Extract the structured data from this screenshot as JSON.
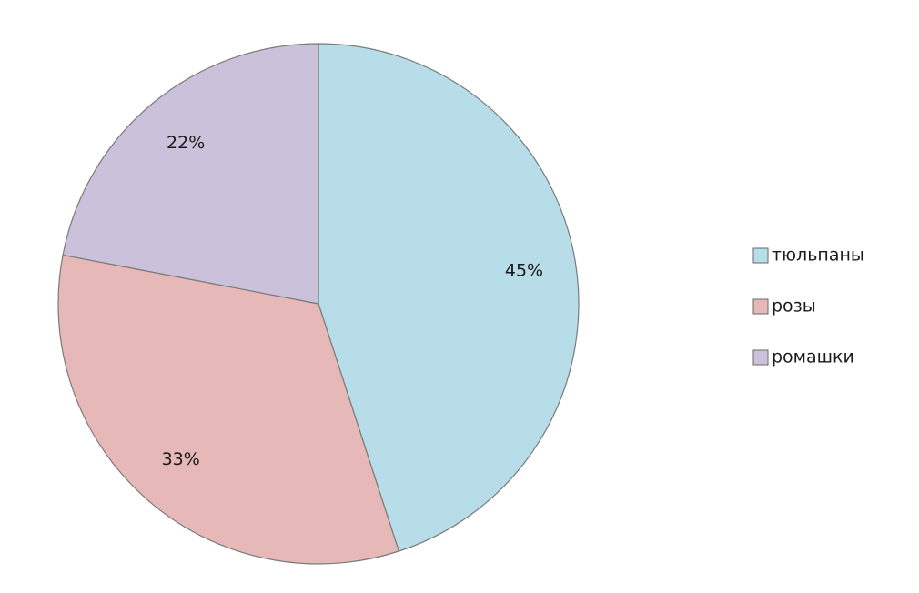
{
  "chart_data": {
    "type": "pie",
    "categories": [
      "тюльпаны",
      "розы",
      "ромашки"
    ],
    "values": [
      45,
      33,
      22
    ],
    "value_labels": [
      "45%",
      "33%",
      "22%"
    ],
    "colors": [
      "#b7dde8",
      "#e6b9b8",
      "#ccc1da"
    ],
    "legend": "right"
  }
}
